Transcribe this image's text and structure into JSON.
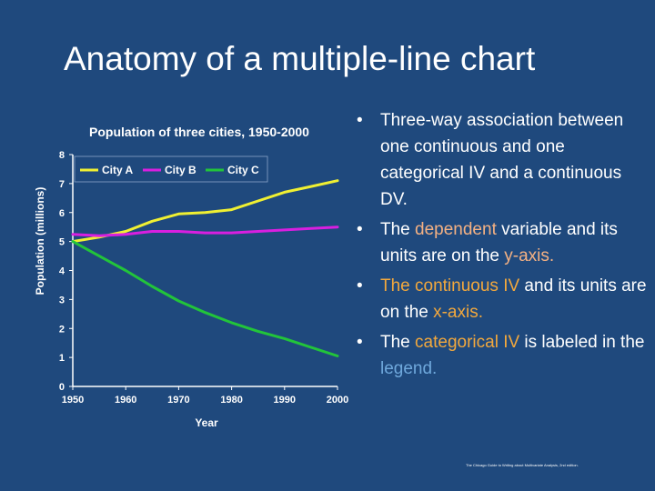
{
  "slide": {
    "title": "Anatomy of a multiple-line chart",
    "bullets": [
      {
        "parts": [
          {
            "text": "Three-way association between one continuous and one categorical IV and a continuous DV.",
            "style": ""
          }
        ]
      },
      {
        "parts": [
          {
            "text": "The ",
            "style": ""
          },
          {
            "text": "dependent",
            "style": "hl"
          },
          {
            "text": " variable and its units are on the ",
            "style": ""
          },
          {
            "text": "y-axis.",
            "style": "hl"
          }
        ]
      },
      {
        "parts": [
          {
            "text": "The continuous IV",
            "style": "hl2"
          },
          {
            "text": " and its units are on the ",
            "style": ""
          },
          {
            "text": "x-axis.",
            "style": "hl2"
          }
        ]
      },
      {
        "parts": [
          {
            "text": "The ",
            "style": ""
          },
          {
            "text": "categorical IV",
            "style": "hl2"
          },
          {
            "text": " is labeled in the ",
            "style": ""
          },
          {
            "text": "legend.",
            "style": "blu"
          }
        ]
      }
    ],
    "footnote": "The Chicago Guide to Writing about Multivariate Analysis, 2nd edition."
  },
  "chart_data": {
    "type": "line",
    "title": "Population of three cities, 1950-2000",
    "xlabel": "Year",
    "ylabel": "Population (millions)",
    "x": [
      1950,
      1955,
      1960,
      1965,
      1970,
      1975,
      1980,
      1985,
      1990,
      1995,
      2000
    ],
    "xticks": [
      1950,
      1960,
      1970,
      1980,
      1990,
      2000
    ],
    "yticks": [
      0,
      1,
      2,
      3,
      4,
      5,
      6,
      7,
      8
    ],
    "xlim": [
      1950,
      2000
    ],
    "ylim": [
      0,
      8
    ],
    "grid": false,
    "legend_position": "top-left",
    "series": [
      {
        "name": "City A",
        "color": "#f0f032",
        "values": [
          5.0,
          5.15,
          5.35,
          5.7,
          5.95,
          6.0,
          6.1,
          6.4,
          6.7,
          6.9,
          7.1
        ]
      },
      {
        "name": "City B",
        "color": "#d81fe0",
        "values": [
          5.25,
          5.2,
          5.25,
          5.35,
          5.35,
          5.3,
          5.3,
          5.35,
          5.4,
          5.45,
          5.5
        ]
      },
      {
        "name": "City C",
        "color": "#22c43a",
        "values": [
          5.0,
          4.5,
          4.0,
          3.45,
          2.95,
          2.55,
          2.2,
          1.9,
          1.65,
          1.35,
          1.05
        ]
      }
    ]
  }
}
